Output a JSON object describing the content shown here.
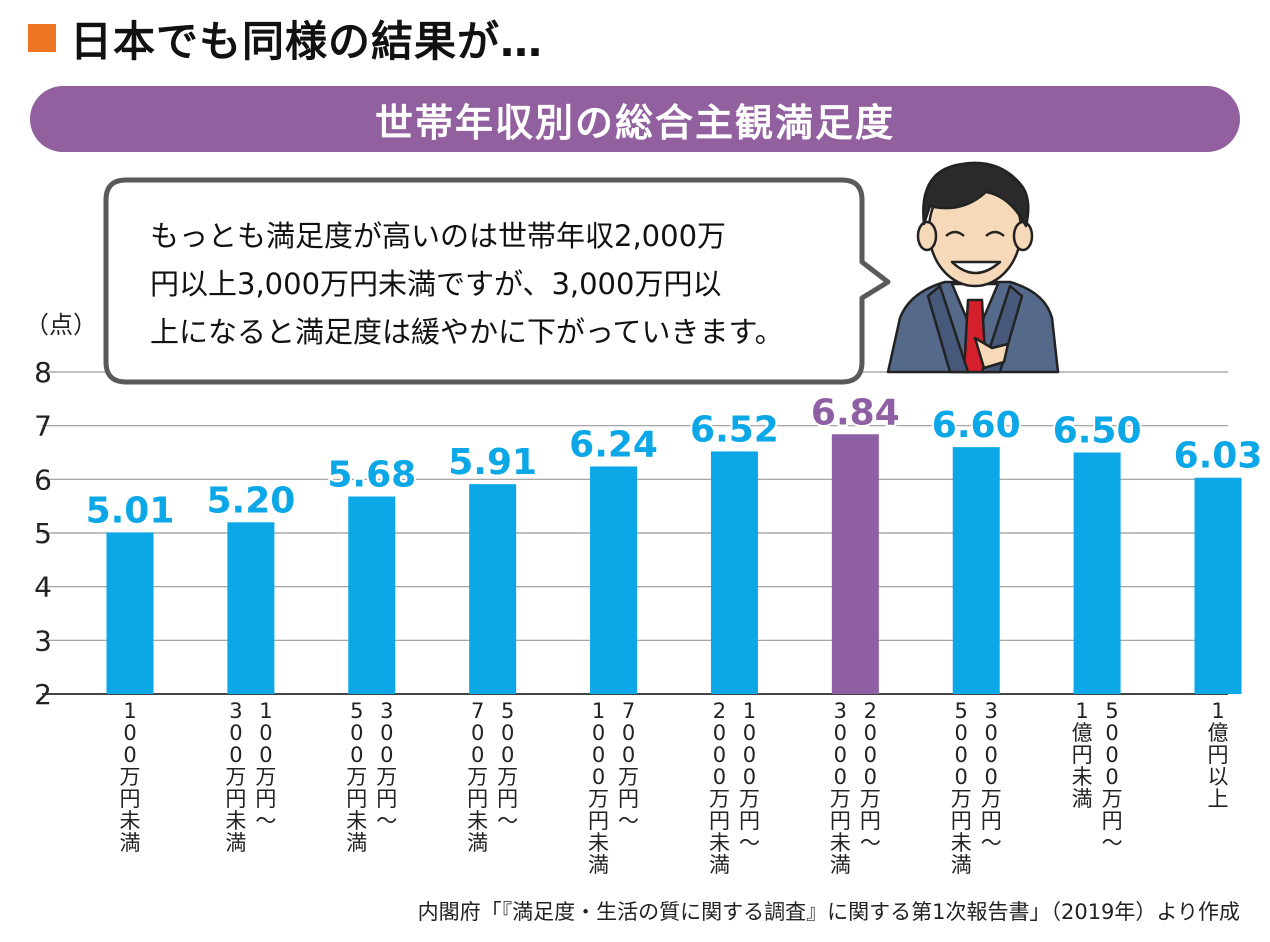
{
  "heading": "日本でも同様の結果が…",
  "banner_title": "世帯年収別の総合主観満足度",
  "speech": {
    "lines": [
      "もっとも満足度が高いのは世帯年収2,000万",
      "円以上3,000万円未満ですが、3,000万円以",
      "上になると満足度は緩やかに下がっていきます。"
    ]
  },
  "source": "内閣府「『満足度・生活の質に関する調査』に関する第1次報告書」（2019年）より作成",
  "colors": {
    "bar": "#0ba7e6",
    "highlight": "#8f5fa3",
    "accent_square": "#ee7622",
    "banner": "#93609f"
  },
  "chart_data": {
    "type": "bar",
    "ylabel": "（点）",
    "ylim": [
      2,
      8
    ],
    "yticks": [
      2,
      3,
      4,
      5,
      6,
      7,
      8
    ],
    "grid": true,
    "categories": [
      "100万円未満",
      "100万円〜300万円未満",
      "300万円〜500万円未満",
      "500万円〜700万円未満",
      "700万円〜1000万円未満",
      "1000万円〜2000万円未満",
      "2000万円〜3000万円未満",
      "3000万円〜5000万円未満",
      "5000万円〜1億円未満",
      "1億円以上"
    ],
    "category_columns": [
      [
        "100万円未満"
      ],
      [
        "100万円〜",
        "300万円未満"
      ],
      [
        "300万円〜",
        "500万円未満"
      ],
      [
        "500万円〜",
        "700万円未満"
      ],
      [
        "700万円〜",
        "1000万円未満"
      ],
      [
        "1000万円〜",
        "2000万円未満"
      ],
      [
        "2000万円〜",
        "3000万円未満"
      ],
      [
        "3000万円〜",
        "5000万円未満"
      ],
      [
        "5000万円〜",
        "1億円未満"
      ],
      [
        "1億円以上"
      ]
    ],
    "values": [
      5.01,
      5.2,
      5.68,
      5.91,
      6.24,
      6.52,
      6.84,
      6.6,
      6.5,
      6.03
    ],
    "value_labels": [
      "5.01",
      "5.20",
      "5.68",
      "5.91",
      "6.24",
      "6.52",
      "6.84",
      "6.60",
      "6.50",
      "6.03"
    ],
    "highlight_index": 6
  }
}
